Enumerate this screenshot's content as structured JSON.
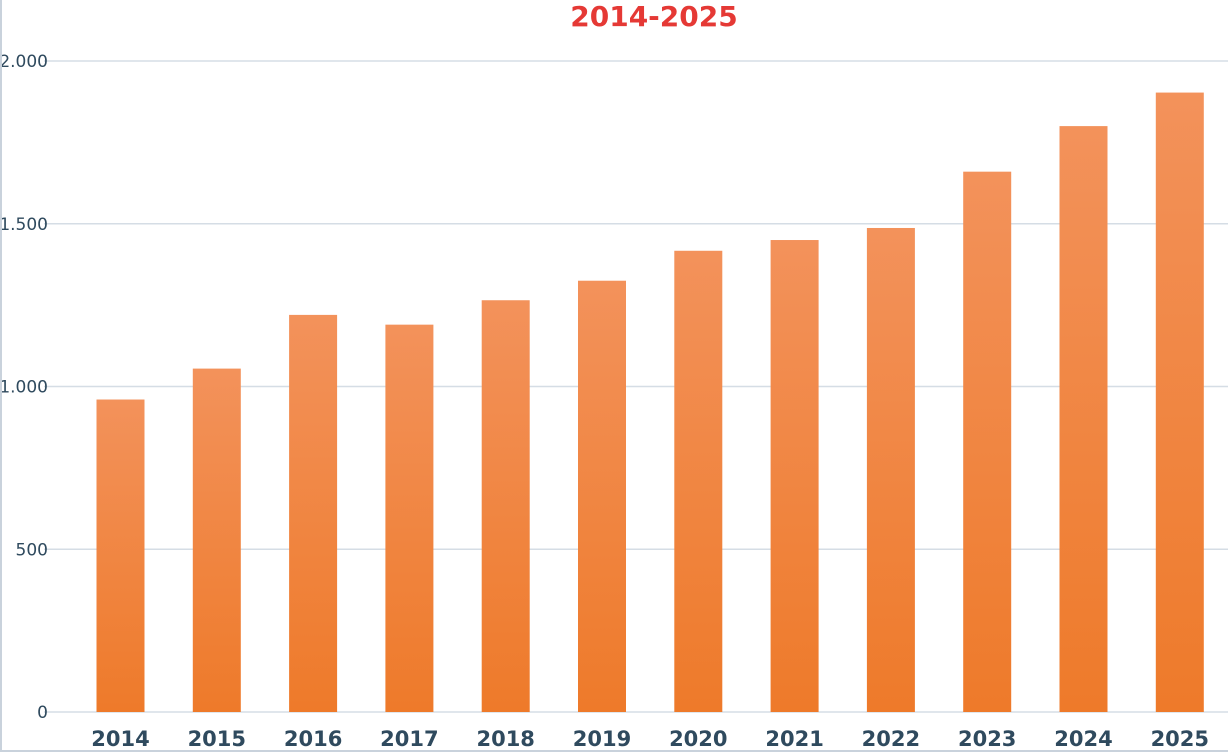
{
  "chart_data": {
    "type": "bar",
    "title": "2014-2025",
    "categories": [
      "2014",
      "2015",
      "2016",
      "2017",
      "2018",
      "2019",
      "2020",
      "2021",
      "2022",
      "2023",
      "2024",
      "2025"
    ],
    "values": [
      960,
      1055,
      1220,
      1190,
      1265,
      1325,
      1417,
      1450,
      1487,
      1660,
      1800,
      1903
    ],
    "ylim": [
      0,
      2000
    ],
    "yticks": [
      0,
      500,
      1000,
      1500,
      2000
    ],
    "ytick_labels": [
      "0",
      "500",
      "1.000",
      "1.500",
      "2.000"
    ],
    "xlabel": "",
    "ylabel": "",
    "grid": true,
    "legend": "none",
    "colors": {
      "title": "#e53935",
      "bar_top": "#f3925b",
      "bar_bottom": "#ee7a2a",
      "grid": "#d5dde5",
      "tick_text": "#2f4a5e"
    }
  }
}
